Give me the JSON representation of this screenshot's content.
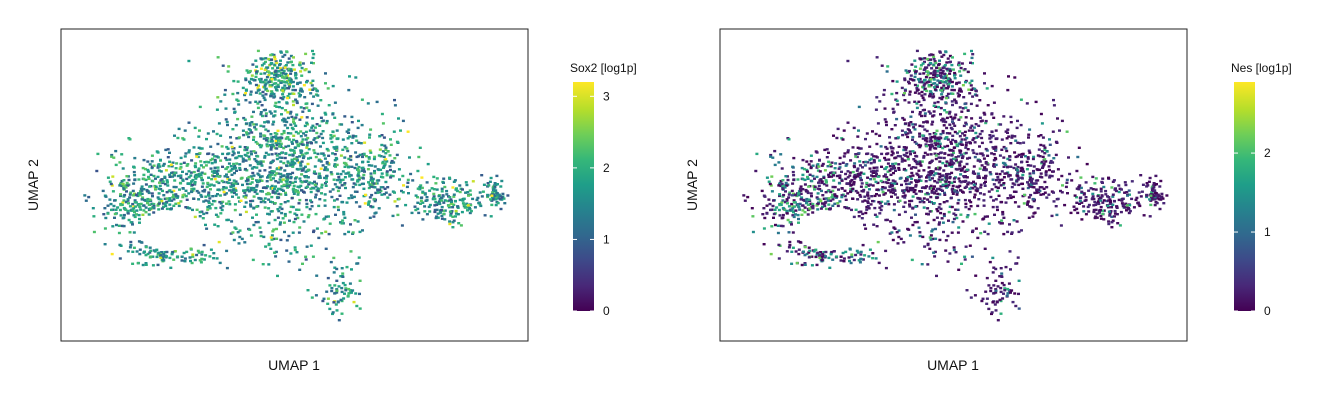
{
  "colors": {
    "viridis": [
      "#440154",
      "#482878",
      "#3e4989",
      "#31688e",
      "#26828e",
      "#1f9e89",
      "#35b779",
      "#6ece58",
      "#b5de2b",
      "#fde725"
    ],
    "frame": "#222222",
    "background": "#ffffff"
  },
  "chart_data": [
    {
      "type": "scatter",
      "title": "",
      "xlabel": "UMAP 1",
      "ylabel": "UMAP 2",
      "colorbar": {
        "title": "Sox2 [log1p]",
        "range": [
          0,
          3.2
        ],
        "ticks": [
          0,
          1,
          2,
          3
        ],
        "colormap": "viridis"
      },
      "expression": "high"
    },
    {
      "type": "scatter",
      "title": "",
      "xlabel": "UMAP 1",
      "ylabel": "UMAP 2",
      "colorbar": {
        "title": "Nes [log1p]",
        "range": [
          0,
          2.9
        ],
        "ticks": [
          0,
          1,
          2
        ],
        "colormap": "viridis"
      },
      "expression": "low"
    }
  ]
}
